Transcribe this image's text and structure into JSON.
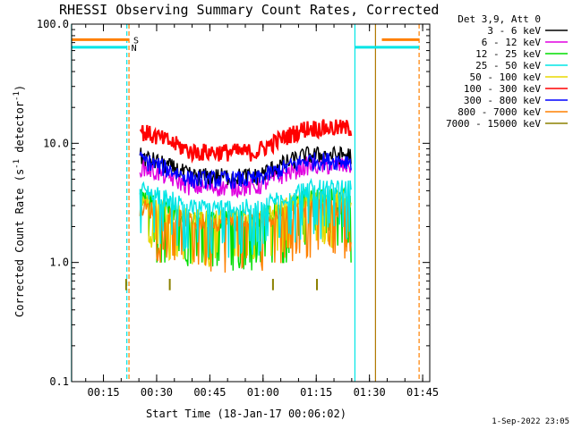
{
  "chart_data": {
    "type": "line",
    "title": "RHESSI Observing Summary Count Rates, Corrected",
    "xlabel": "Start Time (18-Jan-17 00:06:02)",
    "ylabel": "Corrected Count Rate (s^-1 detector^-1)",
    "ylabel_parts": {
      "main": "Corrected Count Rate (s",
      "sup1": "-1",
      "mid": " detector",
      "sup2": "-1",
      "end": ")"
    },
    "y_scale": "log",
    "ylim": [
      0.1,
      100
    ],
    "xlim_minutes": [
      6.03,
      107
    ],
    "x_ticks": [
      {
        "t": 15,
        "label": "00:15"
      },
      {
        "t": 30,
        "label": "00:30"
      },
      {
        "t": 45,
        "label": "00:45"
      },
      {
        "t": 60,
        "label": "01:00"
      },
      {
        "t": 75,
        "label": "01:15"
      },
      {
        "t": 90,
        "label": "01:30"
      },
      {
        "t": 105,
        "label": "01:45"
      }
    ],
    "y_ticks": [
      {
        "v": 0.1,
        "label": "0.1"
      },
      {
        "v": 1,
        "label": "1.0"
      },
      {
        "v": 10,
        "label": "10.0"
      },
      {
        "v": 100,
        "label": "100.0"
      }
    ],
    "legend_header": "Det 3,9, Att 0",
    "series": [
      {
        "name": "3 - 6 keV",
        "color": "#000000",
        "level": [
          8.0,
          5.3,
          8.0
        ]
      },
      {
        "name": "6 - 12 keV",
        "color": "#e000e0",
        "level": [
          6.5,
          4.3,
          6.5
        ]
      },
      {
        "name": "12 - 25 keV",
        "color": "#00dd00",
        "level": [
          3.6,
          2.3,
          3.6
        ]
      },
      {
        "name": "25 - 50 keV",
        "color": "#00e5e5",
        "level": [
          4.2,
          2.9,
          4.2
        ]
      },
      {
        "name": "50 - 100 keV",
        "color": "#e8d800",
        "level": [
          3.5,
          2.4,
          3.5
        ]
      },
      {
        "name": "100 - 300 keV",
        "color": "#ff0000",
        "level": [
          13.0,
          8.5,
          13.5
        ]
      },
      {
        "name": "300 - 800 keV",
        "color": "#0000ff",
        "level": [
          7.5,
          5.0,
          7.2
        ]
      },
      {
        "name": "800 - 7000 keV",
        "color": "#ff8000",
        "level": [
          3.0,
          2.2,
          2.9
        ]
      },
      {
        "name": "7000 - 15000 keV",
        "color": "#8b8000",
        "level": [
          0.65,
          0.65,
          0.65
        ]
      }
    ],
    "data_window_minutes": [
      24.5,
      85.8
    ],
    "flags": [
      {
        "label": "S",
        "color": "#ff8000",
        "segments": [
          [
            6.0,
            22.2
          ],
          [
            93.5,
            104.0
          ]
        ],
        "level": 74
      },
      {
        "label": "N",
        "color": "#00e5e5",
        "segments": [
          [
            6.0,
            21.6
          ],
          [
            85.9,
            104.0
          ]
        ],
        "level": 64
      }
    ],
    "markers": [
      {
        "t": 6.0,
        "color": "#00e5e5",
        "style": "solid"
      },
      {
        "t": 21.6,
        "color": "#00e5e5",
        "style": "dashed"
      },
      {
        "t": 22.2,
        "color": "#ff8000",
        "style": "dashed"
      },
      {
        "t": 85.9,
        "color": "#00e5e5",
        "style": "solid"
      },
      {
        "t": 91.7,
        "color": "#b07800",
        "style": "solid"
      },
      {
        "t": 104.0,
        "color": "#ff8000",
        "style": "dashed"
      }
    ]
  },
  "footer_date": "1-Sep-2022 23:05"
}
